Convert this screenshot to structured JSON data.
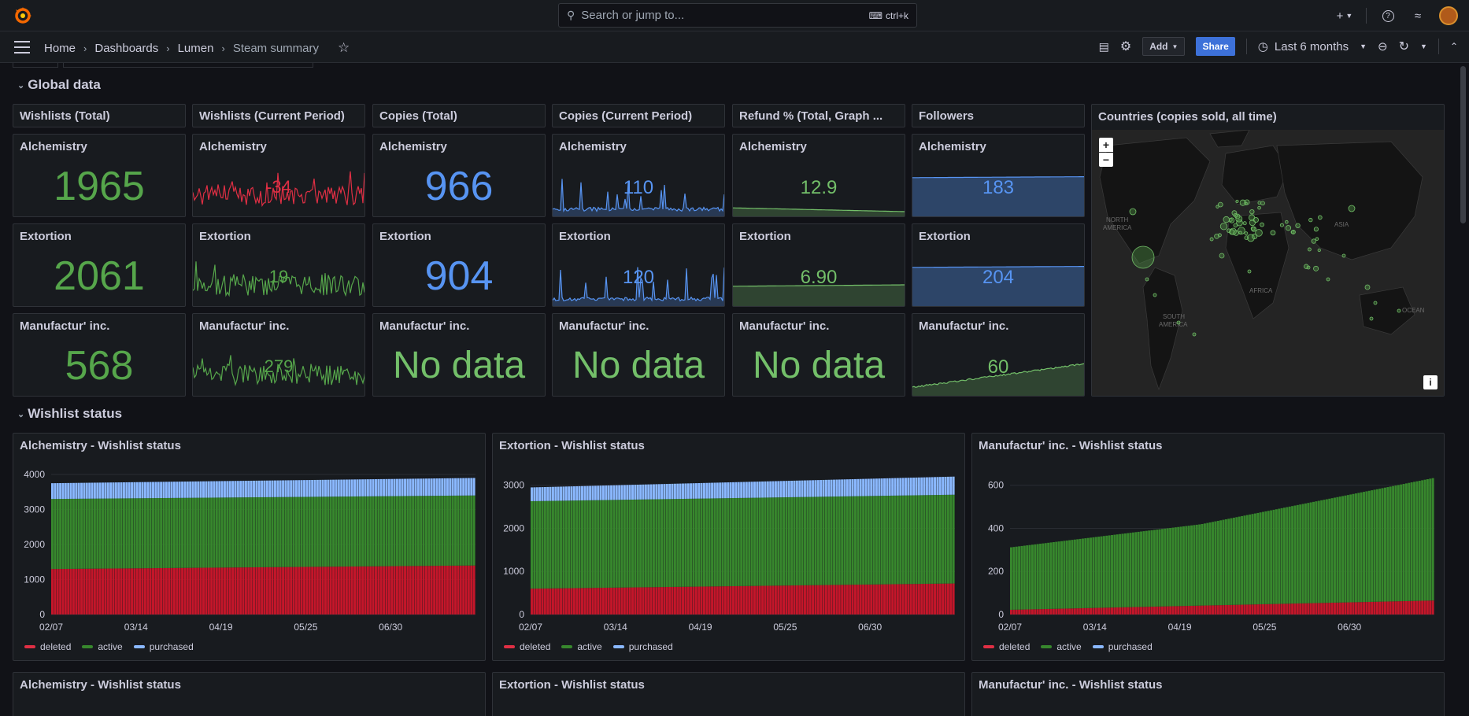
{
  "topbar": {
    "search_placeholder": "Search or jump to...",
    "search_shortcut": "ctrl+k"
  },
  "nav": {
    "breadcrumbs": [
      "Home",
      "Dashboards",
      "Lumen",
      "Steam summary"
    ],
    "add_label": "Add",
    "share_label": "Share",
    "time_range": "Last 6 months"
  },
  "rows": {
    "global": "Global data",
    "wishlist": "Wishlist status"
  },
  "headers": [
    "Wishlists (Total)",
    "Wishlists (Current Period)",
    "Copies (Total)",
    "Copies (Current Period)",
    "Refund % (Total, Graph ...",
    "Followers"
  ],
  "map": {
    "title": "Countries (copies sold, all time)",
    "zoom_in": "+",
    "zoom_out": "−",
    "info": "i",
    "labels": [
      "NORTH AMERICA",
      "ASIA",
      "AFRICA",
      "SOUTH AMERICA",
      "OCEAN"
    ]
  },
  "colors": {
    "green": "#56a64b",
    "green_bright": "#73bf69",
    "blue": "#5794f2",
    "red": "#e02f44",
    "red_dark": "#c4162a",
    "green_dark": "#37872d",
    "blue_light": "#8ab8ff"
  },
  "stat_rows": [
    {
      "game": "Alchemistry",
      "cells": [
        {
          "value": "1965",
          "color": "#56a64b",
          "kind": "big"
        },
        {
          "value": "-34",
          "color": "#e02f44",
          "kind": "spark",
          "series": "red"
        },
        {
          "value": "966",
          "color": "#5794f2",
          "kind": "big"
        },
        {
          "value": "110",
          "color": "#5794f2",
          "kind": "spark",
          "series": "blue"
        },
        {
          "value": "12.9",
          "color": "#73bf69",
          "kind": "spark",
          "series": "greenflat"
        },
        {
          "value": "183",
          "color": "#5794f2",
          "kind": "spark",
          "series": "bluefill"
        }
      ]
    },
    {
      "game": "Extortion",
      "cells": [
        {
          "value": "2061",
          "color": "#56a64b",
          "kind": "big"
        },
        {
          "value": "19",
          "color": "#56a64b",
          "kind": "spark",
          "series": "green"
        },
        {
          "value": "904",
          "color": "#5794f2",
          "kind": "big"
        },
        {
          "value": "120",
          "color": "#5794f2",
          "kind": "spark",
          "series": "blue"
        },
        {
          "value": "6.90",
          "color": "#73bf69",
          "kind": "spark",
          "series": "greenfill"
        },
        {
          "value": "204",
          "color": "#5794f2",
          "kind": "spark",
          "series": "bluefill"
        }
      ]
    },
    {
      "game": "Manufactur' inc.",
      "cells": [
        {
          "value": "568",
          "color": "#56a64b",
          "kind": "big"
        },
        {
          "value": "279",
          "color": "#56a64b",
          "kind": "spark",
          "series": "green"
        },
        {
          "value": "No data",
          "color": "#73bf69",
          "kind": "big"
        },
        {
          "value": "No data",
          "color": "#73bf69",
          "kind": "big"
        },
        {
          "value": "No data",
          "color": "#73bf69",
          "kind": "big"
        },
        {
          "value": "60",
          "color": "#73bf69",
          "kind": "spark",
          "series": "greenrise"
        }
      ]
    }
  ],
  "bottom_titles": [
    "Alchemistry - Wishlist status",
    "Extortion - Wishlist status",
    "Manufactur' inc. - Wishlist status"
  ],
  "chart_data": [
    {
      "type": "bar",
      "title": "Alchemistry - Wishlist status",
      "x": [
        "02/07",
        "03/14",
        "04/19",
        "05/25",
        "06/30"
      ],
      "ylim": [
        0,
        4000
      ],
      "yticks": [
        0,
        1000,
        2000,
        3000,
        4000
      ],
      "stacked": true,
      "series": [
        {
          "name": "deleted",
          "color": "#c4162a",
          "start": 1300,
          "end": 1400
        },
        {
          "name": "active",
          "color": "#37872d",
          "start": 2000,
          "end": 2000
        },
        {
          "name": "purchased",
          "color": "#8ab8ff",
          "start": 450,
          "end": 500
        }
      ]
    },
    {
      "type": "bar",
      "title": "Extortion - Wishlist status",
      "x": [
        "02/07",
        "03/14",
        "04/19",
        "05/25",
        "06/30"
      ],
      "ylim": [
        0,
        3250
      ],
      "yticks": [
        0,
        1000,
        2000,
        3000
      ],
      "stacked": true,
      "series": [
        {
          "name": "deleted",
          "color": "#c4162a",
          "start": 600,
          "end": 720
        },
        {
          "name": "active",
          "color": "#37872d",
          "start": 2030,
          "end": 2060
        },
        {
          "name": "purchased",
          "color": "#8ab8ff",
          "start": 320,
          "end": 420
        }
      ]
    },
    {
      "type": "bar",
      "title": "Manufactur' inc. - Wishlist status",
      "x": [
        "02/07",
        "03/14",
        "04/19",
        "05/25",
        "06/30"
      ],
      "ylim": [
        0,
        650
      ],
      "yticks": [
        0,
        200,
        400,
        600
      ],
      "stacked": true,
      "series": [
        {
          "name": "deleted",
          "color": "#c4162a",
          "start": 22,
          "end": 65
        },
        {
          "name": "active",
          "color": "#37872d",
          "start": 290,
          "end": 568
        },
        {
          "name": "purchased",
          "color": "#8ab8ff",
          "start": 0,
          "end": 0
        }
      ]
    }
  ]
}
